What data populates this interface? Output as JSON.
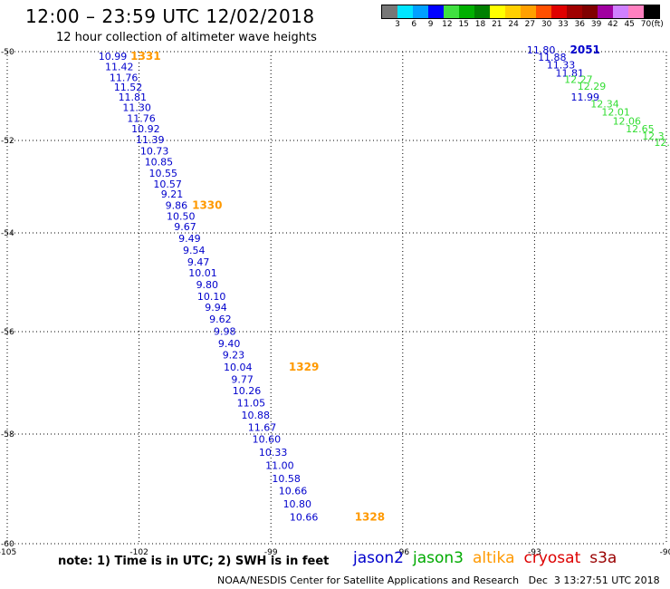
{
  "title": "12:00 – 23:59 UTC 12/02/2018",
  "subtitle": "12 hour collection of altimeter wave heights",
  "legend": {
    "unit": "(ft)",
    "swatch_colors": [
      "#777777",
      "#00e5ff",
      "#00a0ff",
      "#0000ff",
      "#40e040",
      "#00b000",
      "#008000",
      "#ffff00",
      "#ffd000",
      "#ffa000",
      "#ff5000",
      "#e00000",
      "#a00000",
      "#800000",
      "#a000a0",
      "#d080ff",
      "#ff80c0",
      "#000000"
    ],
    "tick_labels": [
      "3",
      "6",
      "9",
      "12",
      "15",
      "18",
      "21",
      "24",
      "27",
      "30",
      "33",
      "36",
      "39",
      "42",
      "45",
      "70"
    ]
  },
  "map": {
    "lon_labels": [
      "-105",
      "-102",
      "-99",
      "-96",
      "-93",
      "-90"
    ],
    "lat_labels": [
      "-50",
      "-52",
      "-54",
      "-56",
      "-58",
      "-60"
    ]
  },
  "chart_data": {
    "type": "scatter",
    "title": "12:00 – 23:59 UTC 12/02/2018",
    "subtitle": "12 hour collection of altimeter wave heights",
    "xlim": [
      -105,
      -90
    ],
    "ylim": [
      -60,
      -50
    ],
    "x_ticks": [
      -105,
      -102,
      -99,
      -96,
      -93,
      -90
    ],
    "y_ticks": [
      -50,
      -52,
      -54,
      -56,
      -58,
      -60
    ],
    "grid": true,
    "series": [
      {
        "name": "jason2",
        "color": "#0000cc",
        "points": [
          {
            "lon": -102.6,
            "lat": -50.18,
            "value": "10.99"
          },
          {
            "lon": -102.45,
            "lat": -50.42,
            "value": "11.42"
          },
          {
            "lon": -102.35,
            "lat": -50.66,
            "value": "11.76"
          },
          {
            "lon": -102.25,
            "lat": -50.88,
            "value": "11.52"
          },
          {
            "lon": -102.15,
            "lat": -51.1,
            "value": "11.81"
          },
          {
            "lon": -102.05,
            "lat": -51.34,
            "value": "11.30"
          },
          {
            "lon": -101.95,
            "lat": -51.58,
            "value": "11.76"
          },
          {
            "lon": -101.85,
            "lat": -51.82,
            "value": "10.92"
          },
          {
            "lon": -101.75,
            "lat": -52.06,
            "value": "11.39"
          },
          {
            "lon": -101.65,
            "lat": -52.3,
            "value": "10.73"
          },
          {
            "lon": -101.55,
            "lat": -52.54,
            "value": "10.85"
          },
          {
            "lon": -101.45,
            "lat": -52.78,
            "value": "10.55"
          },
          {
            "lon": -101.35,
            "lat": -53.02,
            "value": "10.57"
          },
          {
            "lon": -101.25,
            "lat": -53.24,
            "value": "9.21"
          },
          {
            "lon": -101.15,
            "lat": -53.48,
            "value": "9.86"
          },
          {
            "lon": -101.05,
            "lat": -53.72,
            "value": "10.50"
          },
          {
            "lon": -100.95,
            "lat": -53.94,
            "value": "9.67"
          },
          {
            "lon": -100.85,
            "lat": -54.18,
            "value": "9.49"
          },
          {
            "lon": -100.75,
            "lat": -54.42,
            "value": "9.54"
          },
          {
            "lon": -100.65,
            "lat": -54.66,
            "value": "9.47"
          },
          {
            "lon": -100.55,
            "lat": -54.88,
            "value": "10.01"
          },
          {
            "lon": -100.45,
            "lat": -55.12,
            "value": "9.80"
          },
          {
            "lon": -100.35,
            "lat": -55.36,
            "value": "10.10"
          },
          {
            "lon": -100.25,
            "lat": -55.58,
            "value": "9.94"
          },
          {
            "lon": -100.15,
            "lat": -55.82,
            "value": "9.62"
          },
          {
            "lon": -100.05,
            "lat": -56.06,
            "value": "9.98"
          },
          {
            "lon": -99.95,
            "lat": -56.3,
            "value": "9.40"
          },
          {
            "lon": -99.85,
            "lat": -56.52,
            "value": "9.23"
          },
          {
            "lon": -99.75,
            "lat": -56.76,
            "value": "10.04"
          },
          {
            "lon": -99.65,
            "lat": -57.0,
            "value": "9.77"
          },
          {
            "lon": -99.55,
            "lat": -57.22,
            "value": "10.26"
          },
          {
            "lon": -99.45,
            "lat": -57.46,
            "value": "11.05"
          },
          {
            "lon": -99.35,
            "lat": -57.7,
            "value": "10.88"
          },
          {
            "lon": -99.2,
            "lat": -57.94,
            "value": "11.67"
          },
          {
            "lon": -99.1,
            "lat": -58.16,
            "value": "10.60"
          },
          {
            "lon": -98.95,
            "lat": -58.4,
            "value": "10.33"
          },
          {
            "lon": -98.8,
            "lat": -58.64,
            "value": "11.00"
          },
          {
            "lon": -98.65,
            "lat": -58.88,
            "value": "10.58"
          },
          {
            "lon": -98.5,
            "lat": -59.1,
            "value": "10.66"
          },
          {
            "lon": -98.4,
            "lat": -59.34,
            "value": "10.80"
          },
          {
            "lon": -98.25,
            "lat": -59.58,
            "value": "10.66"
          },
          {
            "lon": -92.85,
            "lat": -50.04,
            "value": "11.80"
          },
          {
            "lon": -92.6,
            "lat": -50.2,
            "value": "11.88"
          },
          {
            "lon": -92.4,
            "lat": -50.38,
            "value": "11.33"
          },
          {
            "lon": -92.2,
            "lat": -50.56,
            "value": "11.81"
          },
          {
            "lon": -91.85,
            "lat": -51.1,
            "value": "11.99"
          }
        ]
      },
      {
        "name": "jason3",
        "color": "#33dd33",
        "points": [
          {
            "lon": -92.0,
            "lat": -50.7,
            "value": "12.27"
          },
          {
            "lon": -91.7,
            "lat": -50.86,
            "value": "12.29"
          },
          {
            "lon": -91.4,
            "lat": -51.26,
            "value": "12.34"
          },
          {
            "lon": -91.15,
            "lat": -51.44,
            "value": "12.01"
          },
          {
            "lon": -90.9,
            "lat": -51.64,
            "value": "12.06"
          },
          {
            "lon": -90.6,
            "lat": -51.82,
            "value": "12.65"
          },
          {
            "lon": -90.3,
            "lat": -51.98,
            "value": "12.3"
          },
          {
            "lon": -90.1,
            "lat": -52.12,
            "value": "12."
          }
        ]
      },
      {
        "name": "altika",
        "color": "#ff9900",
        "points": []
      },
      {
        "name": "cryosat",
        "color": "#cc0000",
        "points": []
      },
      {
        "name": "s3a",
        "color": "#990000",
        "points": []
      }
    ],
    "time_labels": [
      {
        "lon": -101.85,
        "lat": -50.18,
        "text": "1331",
        "color": "#ff9900"
      },
      {
        "lon": -100.45,
        "lat": -53.48,
        "text": "1330",
        "color": "#ff9900"
      },
      {
        "lon": -98.25,
        "lat": -56.76,
        "text": "1329",
        "color": "#ff9900"
      },
      {
        "lon": -96.75,
        "lat": -59.58,
        "text": "1328",
        "color": "#ff9900"
      },
      {
        "lon": -91.85,
        "lat": -50.04,
        "text": "2051",
        "color": "#0000cc"
      }
    ]
  },
  "note": "note: 1) Time is in UTC; 2) SWH is in feet",
  "satellites": [
    {
      "label": "jason2",
      "color": "#0000cc"
    },
    {
      "label": "jason3",
      "color": "#00aa00"
    },
    {
      "label": "altika",
      "color": "#ff9900"
    },
    {
      "label": "cryosat",
      "color": "#dd0000"
    },
    {
      "label": "s3a",
      "color": "#990000"
    }
  ],
  "footer": "NOAA/NESDIS Center for Satellite Applications and Research   Dec  3 13:27:51 UTC 2018"
}
